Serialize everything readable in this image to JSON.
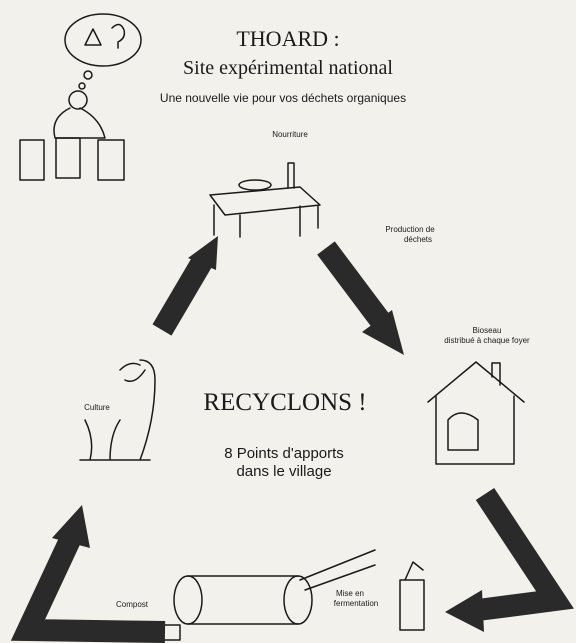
{
  "header": {
    "title": "THOARD :",
    "subtitle": "Site expérimental national",
    "tagline": "Une nouvelle vie pour vos déchets organiques"
  },
  "center": {
    "slogan": "RECYCLONS !",
    "note": [
      "8 Points d'apports",
      "dans le village"
    ]
  },
  "steps": [
    {
      "label": [
        "Nourriture"
      ]
    },
    {
      "label": [
        "Production de",
        "déchets"
      ]
    },
    {
      "label": [
        "Bioseau",
        "distribué à chaque foyer"
      ]
    },
    {
      "label": [
        "Mise en",
        "fermentation"
      ]
    },
    {
      "label": [
        "Compost"
      ]
    },
    {
      "label": [
        "Culture"
      ]
    }
  ]
}
